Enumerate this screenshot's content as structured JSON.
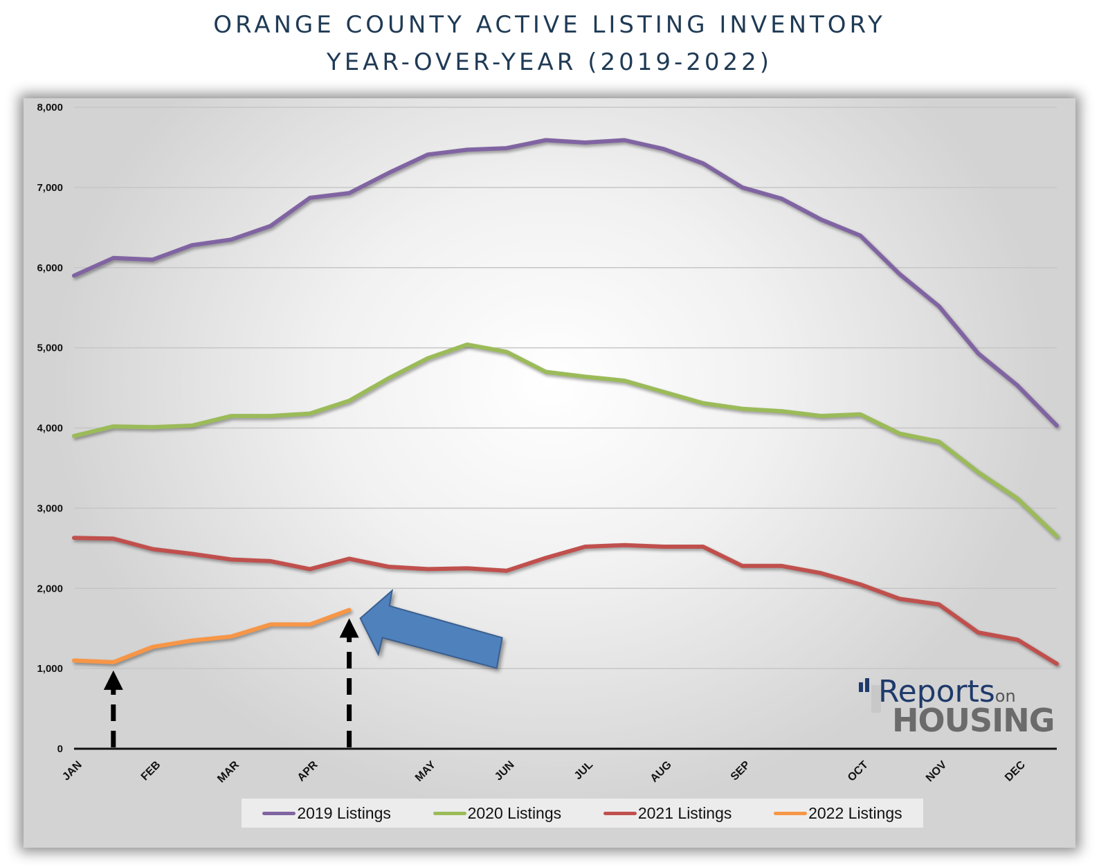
{
  "title": {
    "line1": "ORANGE COUNTY ACTIVE LISTING INVENTORY",
    "line2": "YEAR-OVER-YEAR (2019-2022)"
  },
  "logo": {
    "word1": "Reports",
    "word2": "on",
    "word3": "HOUSING"
  },
  "colors": {
    "2019": "#8064a2",
    "2020": "#9bbb59",
    "2021": "#c0504d",
    "2022": "#f79646",
    "arrow": "#4f81bd"
  },
  "chart_data": {
    "type": "line",
    "title": "ORANGE COUNTY ACTIVE LISTING INVENTORY YEAR-OVER-YEAR (2019-2022)",
    "xlabel": "",
    "ylabel": "",
    "ylim": [
      0,
      8000
    ],
    "y_ticks": [
      "8,000",
      "7,000",
      "6,000",
      "5,000",
      "4,000",
      "3,000",
      "2,000",
      "1,000",
      "0"
    ],
    "month_labels": [
      "JAN",
      "FEB",
      "MAR",
      "APR",
      "MAY",
      "JUN",
      "JUL",
      "AUG",
      "SEP",
      "OCT",
      "NOV",
      "DEC"
    ],
    "legend_position": "bottom",
    "grid": true,
    "series": [
      {
        "name": "2019 Listings",
        "color": "#8064a2",
        "values": [
          5900,
          6120,
          6100,
          6280,
          6350,
          6520,
          6870,
          6930,
          7180,
          7410,
          7470,
          7490,
          7590,
          7560,
          7590,
          7480,
          7300,
          7000,
          6860,
          6600,
          6400,
          5920,
          5520,
          4930,
          4530,
          4030
        ]
      },
      {
        "name": "2020 Listings",
        "color": "#9bbb59",
        "values": [
          3900,
          4020,
          4010,
          4030,
          4150,
          4150,
          4180,
          4340,
          4620,
          4870,
          5040,
          4950,
          4700,
          4640,
          4590,
          4450,
          4310,
          4240,
          4210,
          4150,
          4170,
          3930,
          3830,
          3450,
          3120,
          2650
        ]
      },
      {
        "name": "2021 Listings",
        "color": "#c0504d",
        "values": [
          2630,
          2620,
          2490,
          2430,
          2360,
          2340,
          2240,
          2370,
          2270,
          2240,
          2250,
          2220,
          2380,
          2520,
          2540,
          2520,
          2520,
          2280,
          2280,
          2190,
          2050,
          1870,
          1800,
          1450,
          1360,
          1060
        ]
      },
      {
        "name": "2022 Listings",
        "color": "#f79646",
        "values": [
          1100,
          1080,
          1270,
          1350,
          1400,
          1550,
          1550,
          1730
        ]
      }
    ]
  }
}
